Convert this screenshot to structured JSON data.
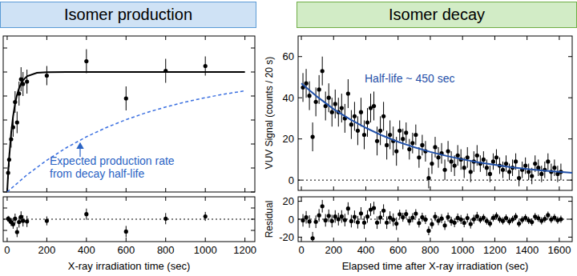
{
  "chart_data": [
    {
      "type": "scatter",
      "title": "Isomer production",
      "xlim": [
        -20,
        1250
      ],
      "ylim": [
        0,
        1.3
      ],
      "xticks": [
        0,
        200,
        400,
        600,
        800,
        1000,
        1200
      ],
      "yticks": [
        0,
        0.2,
        0.4,
        0.6,
        0.8,
        1,
        1.2
      ],
      "tick_labels": false,
      "annotation": [
        "Expected production rate",
        "from decay half-life"
      ],
      "series": [
        {
          "type": "scatter",
          "color": "#000000",
          "marker": "circle",
          "x": [
            5,
            10,
            20,
            30,
            40,
            50,
            60,
            70,
            80,
            100,
            200,
            400,
            600,
            800,
            1000
          ],
          "values": [
            0.16,
            0.27,
            0.44,
            0.54,
            0.75,
            0.58,
            0.82,
            0.94,
            0.9,
            0.92,
            0.97,
            1.09,
            0.78,
            1.01,
            1.05
          ],
          "errors": [
            0.05,
            0.06,
            0.07,
            0.08,
            0.09,
            0.09,
            0.1,
            0.1,
            0.1,
            0.1,
            0.08,
            0.1,
            0.1,
            0.1,
            0.08
          ]
        },
        {
          "type": "line",
          "color": "#000000",
          "line_style": "solid",
          "x": [
            0,
            5,
            10,
            20,
            30,
            40,
            50,
            60,
            70,
            80,
            100,
            150,
            200,
            300,
            400,
            600,
            800,
            1000,
            1200
          ],
          "values": [
            0,
            0.154,
            0.283,
            0.487,
            0.632,
            0.736,
            0.811,
            0.865,
            0.903,
            0.931,
            0.964,
            0.993,
            0.999,
            1,
            1,
            1,
            1,
            1,
            1
          ]
        },
        {
          "type": "line",
          "color": "#3a6fe0",
          "line_style": "dashed",
          "x": [
            0,
            100,
            200,
            300,
            400,
            500,
            600,
            700,
            800,
            900,
            1000,
            1100,
            1200
          ],
          "values": [
            0,
            0.143,
            0.265,
            0.37,
            0.46,
            0.537,
            0.603,
            0.66,
            0.708,
            0.75,
            0.786,
            0.817,
            0.843
          ]
        }
      ]
    },
    {
      "type": "scatter",
      "xlabel": "X-ray irradiation time (sec)",
      "xlim": [
        -20,
        1250
      ],
      "ylim": [
        -0.4,
        0.4
      ],
      "xticks": [
        0,
        200,
        400,
        600,
        800,
        1000,
        1200
      ],
      "yticks": [
        -0.2,
        0,
        0.2
      ],
      "tick_labels": "x",
      "hline": 0,
      "series": [
        {
          "type": "scatter",
          "color": "#000000",
          "marker": "circle",
          "x": [
            5,
            10,
            20,
            30,
            40,
            50,
            60,
            70,
            80,
            100,
            200,
            400,
            600,
            800,
            1000
          ],
          "values": [
            0.01,
            -0.01,
            -0.05,
            -0.09,
            0.01,
            -0.23,
            -0.05,
            0.04,
            -0.03,
            -0.04,
            -0.03,
            0.09,
            -0.22,
            0.01,
            0.05
          ],
          "errors": [
            0.05,
            0.06,
            0.07,
            0.08,
            0.09,
            0.09,
            0.1,
            0.1,
            0.1,
            0.1,
            0.08,
            0.1,
            0.1,
            0.1,
            0.08
          ]
        }
      ]
    },
    {
      "type": "scatter",
      "title": "Isomer decay",
      "ylabel": "VUV Signal (counts / 20 s)",
      "xlim": [
        -20,
        1680
      ],
      "ylim": [
        -5,
        70
      ],
      "xticks": [
        0,
        200,
        400,
        600,
        800,
        1000,
        1200,
        1400,
        1600
      ],
      "yticks": [
        0,
        20,
        40,
        60
      ],
      "tick_labels": "y",
      "hline": 0,
      "annotation": [
        "Half-life ~ 450 sec"
      ],
      "series": [
        {
          "type": "scatter",
          "color": "#000000",
          "marker": "circle",
          "x": [
            10,
            30,
            50,
            70,
            90,
            110,
            130,
            150,
            170,
            190,
            210,
            230,
            250,
            270,
            290,
            310,
            330,
            350,
            370,
            390,
            410,
            430,
            450,
            470,
            490,
            510,
            530,
            550,
            570,
            590,
            610,
            630,
            650,
            670,
            690,
            710,
            730,
            750,
            770,
            790,
            810,
            830,
            850,
            870,
            890,
            910,
            930,
            950,
            970,
            990,
            1010,
            1030,
            1050,
            1070,
            1090,
            1110,
            1130,
            1150,
            1170,
            1190,
            1210,
            1230,
            1250,
            1270,
            1290,
            1310,
            1330,
            1350,
            1370,
            1390,
            1410,
            1430,
            1450,
            1470,
            1490,
            1510,
            1530,
            1550,
            1570,
            1590,
            1610
          ],
          "values": [
            45,
            47,
            41,
            21,
            38,
            44,
            53,
            36,
            40,
            33,
            37,
            33,
            35,
            30,
            42,
            27,
            31,
            24,
            33,
            22,
            28,
            35,
            36,
            19,
            24,
            31,
            17,
            22,
            19,
            14,
            24,
            20,
            23,
            15,
            18,
            22,
            11,
            17,
            14,
            1,
            8,
            16,
            11,
            13,
            5,
            14,
            9,
            7,
            12,
            10,
            6,
            11,
            4,
            9,
            12,
            8,
            10,
            6,
            3,
            9,
            11,
            7,
            5,
            8,
            4,
            6,
            9,
            1,
            5,
            7,
            4,
            2,
            8,
            6,
            3,
            5,
            9,
            4,
            6,
            3,
            4
          ],
          "errors": [
            7,
            7,
            7,
            7,
            7,
            7,
            7,
            7,
            7,
            7,
            7,
            7,
            7,
            7,
            7,
            7,
            7,
            7,
            7,
            7,
            7,
            7,
            7,
            7,
            7,
            7,
            7,
            7,
            7,
            7,
            5,
            5,
            5,
            5,
            5,
            5,
            5,
            5,
            5,
            5,
            5,
            5,
            5,
            5,
            5,
            5,
            5,
            5,
            5,
            5,
            5,
            5,
            5,
            5,
            5,
            4,
            4,
            4,
            4,
            4,
            4,
            4,
            4,
            4,
            4,
            4,
            4,
            4,
            4,
            4,
            4,
            4,
            4,
            4,
            4,
            4,
            4,
            4,
            4,
            4,
            4
          ]
        },
        {
          "type": "line",
          "color": "#1f4fa8",
          "line_style": "solid",
          "x": [
            0,
            100,
            200,
            300,
            400,
            500,
            600,
            700,
            800,
            900,
            1000,
            1100,
            1200,
            1300,
            1400,
            1500,
            1600,
            1700
          ],
          "values": [
            47,
            40.4,
            34.5,
            29.6,
            25.4,
            21.7,
            18.6,
            16,
            13.7,
            11.75,
            10.1,
            8.6,
            7.4,
            6.3,
            5.4,
            4.65,
            4,
            3.4
          ]
        }
      ]
    },
    {
      "type": "scatter",
      "ylabel": "Residual",
      "xlabel": "Elapsed time after X-ray irradiation (sec)",
      "xlim": [
        -20,
        1680
      ],
      "ylim": [
        -25,
        25
      ],
      "xticks": [
        0,
        200,
        400,
        600,
        800,
        1000,
        1200,
        1400,
        1600
      ],
      "yticks": [
        -20,
        0,
        20
      ],
      "hline": 0,
      "series": [
        {
          "type": "scatter",
          "color": "#000000",
          "marker": "circle",
          "x": [
            10,
            30,
            50,
            70,
            90,
            110,
            130,
            150,
            170,
            190,
            210,
            230,
            250,
            270,
            290,
            310,
            330,
            350,
            370,
            390,
            410,
            430,
            450,
            470,
            490,
            510,
            530,
            550,
            570,
            590,
            610,
            630,
            650,
            670,
            690,
            710,
            730,
            750,
            770,
            790,
            810,
            830,
            850,
            870,
            890,
            910,
            930,
            950,
            970,
            990,
            1010,
            1030,
            1050,
            1070,
            1090,
            1110,
            1130,
            1150,
            1170,
            1190,
            1210,
            1230,
            1250,
            1270,
            1290,
            1310,
            1330,
            1350,
            1370,
            1390,
            1410,
            1430,
            1450,
            1470,
            1490,
            1510,
            1530,
            1550,
            1570,
            1590,
            1610
          ],
          "values": [
            -1.3,
            2.1,
            -2.6,
            -21.2,
            -2.9,
            4.3,
            14.5,
            -1.3,
            3.8,
            -2.1,
            3,
            0,
            3,
            -1,
            11.9,
            -2.2,
            2.7,
            -3.4,
            6.4,
            -3.8,
            3,
            10.7,
            12.5,
            -3.8,
            1.9,
            9.6,
            -3.8,
            1.8,
            -0.6,
            -5,
            5.6,
            2.2,
            5.7,
            -1.8,
            1.7,
            6.2,
            -4.3,
            2.2,
            -0.4,
            -12.9,
            -5.5,
            2.9,
            -1.7,
            0.7,
            -7,
            2.4,
            -2.3,
            -3.9,
            1.4,
            -0.3,
            -4,
            1.3,
            -5.4,
            -0.1,
            3.2,
            -0.5,
            1.7,
            -2,
            -4.8,
            1.5,
            3.7,
            -0.1,
            -1.9,
            1.3,
            -2.5,
            -0.3,
            2.9,
            -4.9,
            -0.7,
            1.5,
            -1.4,
            -3.2,
            2.9,
            1.1,
            -1.8,
            0.4,
            4.5,
            -0.3,
            1.8,
            -1.1,
            0
          ],
          "errors": [
            7,
            7,
            7,
            7,
            7,
            7,
            7,
            7,
            7,
            7,
            7,
            7,
            7,
            7,
            7,
            7,
            7,
            7,
            7,
            7,
            7,
            7,
            7,
            7,
            7,
            7,
            7,
            7,
            7,
            7,
            5,
            5,
            5,
            5,
            5,
            5,
            5,
            5,
            5,
            5,
            5,
            5,
            5,
            5,
            5,
            5,
            5,
            5,
            5,
            5,
            5,
            5,
            5,
            5,
            5,
            4,
            4,
            4,
            4,
            4,
            4,
            4,
            4,
            4,
            4,
            4,
            4,
            4,
            4,
            4,
            4,
            4,
            4,
            4,
            4,
            4,
            4,
            4,
            4,
            4,
            4
          ]
        }
      ]
    }
  ]
}
